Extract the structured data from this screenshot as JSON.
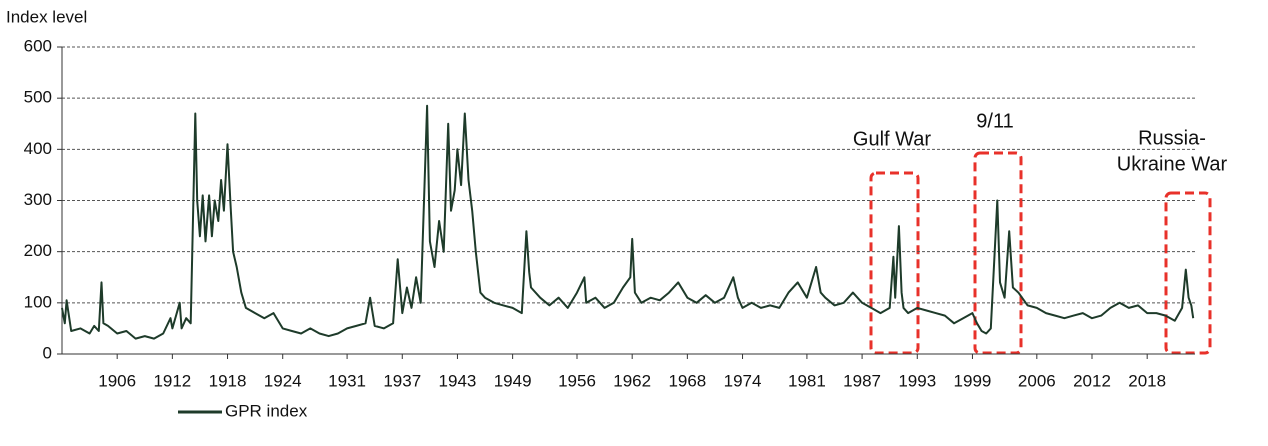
{
  "chart_data": {
    "type": "line",
    "y_label": "Index level",
    "annotations": [
      {
        "lines": [
          "Gulf War"
        ]
      },
      {
        "lines": [
          "9/11"
        ]
      },
      {
        "lines": [
          "Russia-",
          "Ukraine War"
        ]
      }
    ],
    "xlim": [
      1900,
      2023.2
    ],
    "xticks": [
      1906,
      1912,
      1918,
      1924,
      1931,
      1937,
      1943,
      1949,
      1956,
      1962,
      1968,
      1974,
      1981,
      1987,
      1993,
      1999,
      2006,
      2012,
      2018
    ],
    "ylim": [
      0,
      600
    ],
    "yticks": [
      0,
      100,
      200,
      300,
      400,
      500,
      600
    ],
    "grid": true,
    "series": [
      {
        "name": "GPR index",
        "color": "#1e3b2a",
        "x": [
          1900,
          1900.3,
          1900.5,
          1901,
          1902,
          1903,
          1903.5,
          1904,
          1904.3,
          1904.5,
          1905,
          1906,
          1907,
          1908,
          1909,
          1910,
          1911,
          1911.8,
          1912,
          1912.8,
          1913,
          1913.5,
          1914,
          1914.5,
          1914.7,
          1915,
          1915.3,
          1915.6,
          1916,
          1916.3,
          1916.6,
          1917,
          1917.3,
          1917.6,
          1918,
          1918.3,
          1918.6,
          1919,
          1919.5,
          1920,
          1921,
          1922,
          1923,
          1924,
          1925,
          1926,
          1927,
          1928,
          1929,
          1930,
          1931,
          1932,
          1933,
          1933.5,
          1934,
          1935,
          1936,
          1936.5,
          1937,
          1937.5,
          1938,
          1938.5,
          1939,
          1939.7,
          1940,
          1940.5,
          1941,
          1941.5,
          1942,
          1942.3,
          1942.7,
          1943,
          1943.4,
          1943.8,
          1944.2,
          1944.6,
          1945,
          1945.5,
          1946,
          1947,
          1948,
          1949,
          1950,
          1950.5,
          1950.8,
          1951,
          1952,
          1953,
          1954,
          1955,
          1956,
          1956.8,
          1957,
          1958,
          1959,
          1960,
          1961,
          1961.8,
          1962,
          1962.3,
          1963,
          1964,
          1965,
          1966,
          1967,
          1968,
          1969,
          1970,
          1971,
          1972,
          1973,
          1973.5,
          1974,
          1975,
          1976,
          1977,
          1978,
          1979,
          1980,
          1981,
          1982,
          1982.5,
          1983,
          1984,
          1985,
          1986,
          1987,
          1988,
          1989,
          1990,
          1990.4,
          1990.6,
          1991,
          1991.3,
          1991.5,
          1992,
          1993,
          1994,
          1995,
          1996,
          1997,
          1998,
          1999,
          1999.5,
          2000,
          2000.5,
          2001,
          2001.7,
          2002,
          2002.5,
          2003,
          2003.4,
          2004,
          2005,
          2006,
          2007,
          2008,
          2009,
          2010,
          2011,
          2012,
          2013,
          2014,
          2015,
          2016,
          2017,
          2018,
          2019,
          2020,
          2021,
          2021.8,
          2022.2,
          2022.5,
          2022.8,
          2023
        ],
        "values": [
          90,
          60,
          105,
          45,
          50,
          40,
          55,
          45,
          140,
          60,
          55,
          40,
          45,
          30,
          35,
          30,
          40,
          70,
          50,
          100,
          50,
          70,
          60,
          470,
          300,
          230,
          310,
          220,
          310,
          230,
          300,
          260,
          340,
          280,
          410,
          300,
          200,
          170,
          120,
          90,
          80,
          70,
          80,
          50,
          45,
          40,
          50,
          40,
          35,
          40,
          50,
          55,
          60,
          110,
          55,
          50,
          60,
          185,
          80,
          130,
          90,
          150,
          100,
          485,
          220,
          170,
          260,
          200,
          450,
          280,
          320,
          400,
          330,
          470,
          340,
          280,
          200,
          120,
          110,
          100,
          95,
          90,
          80,
          240,
          160,
          130,
          110,
          95,
          110,
          90,
          120,
          150,
          100,
          110,
          90,
          100,
          130,
          150,
          225,
          120,
          100,
          110,
          105,
          120,
          140,
          110,
          100,
          115,
          100,
          110,
          150,
          110,
          90,
          100,
          90,
          95,
          90,
          120,
          140,
          110,
          170,
          120,
          110,
          95,
          100,
          120,
          100,
          90,
          80,
          90,
          190,
          110,
          250,
          120,
          90,
          80,
          90,
          85,
          80,
          75,
          60,
          70,
          80,
          60,
          45,
          40,
          50,
          300,
          140,
          110,
          240,
          130,
          120,
          95,
          90,
          80,
          75,
          70,
          75,
          80,
          70,
          75,
          90,
          100,
          90,
          95,
          80,
          80,
          75,
          65,
          90,
          165,
          110,
          95,
          70
        ]
      }
    ]
  }
}
